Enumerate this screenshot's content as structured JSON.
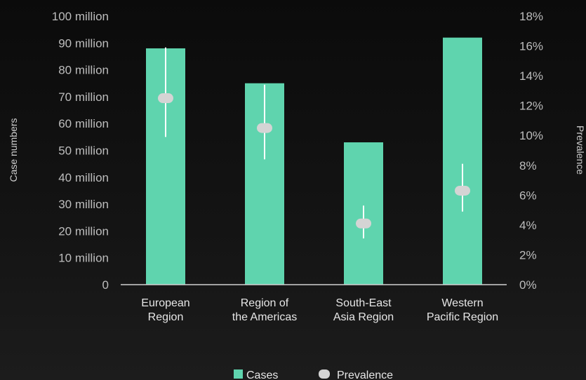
{
  "chart_data": {
    "type": "bar",
    "categories": [
      [
        "European",
        "Region"
      ],
      [
        "Region of",
        "the Americas"
      ],
      [
        "South-East",
        "Asia Region"
      ],
      [
        "Western",
        "Pacific Region"
      ]
    ],
    "series": [
      {
        "name": "Cases",
        "type": "bar",
        "axis": "left",
        "values": [
          88,
          75,
          53,
          92
        ]
      },
      {
        "name": "Prevalence",
        "type": "point",
        "axis": "right",
        "values": [
          12.5,
          10.5,
          4.1,
          6.3
        ],
        "error_low": [
          9.9,
          8.4,
          3.1,
          4.9
        ],
        "error_high": [
          15.9,
          13.4,
          5.3,
          8.1
        ]
      }
    ],
    "ylabel": "Case numbers",
    "y2label": "Prevalence",
    "ylim": [
      0,
      100
    ],
    "y2lim": [
      0,
      18
    ],
    "yticks": [
      "0",
      "10 million",
      "20 million",
      "30 million",
      "40 million",
      "50 million",
      "60 million",
      "70 million",
      "80 million",
      "90 million",
      "100 million"
    ],
    "y2ticks": [
      "0%",
      "2%",
      "4%",
      "6%",
      "8%",
      "10%",
      "12%",
      "14%",
      "16%",
      "18%"
    ],
    "grid": false,
    "legend_position": "bottom-center",
    "colors": {
      "bar": "#5fd4ae",
      "point": "#d4d4d4",
      "errorbar": "#ffffff",
      "axis": "#d0d0d0"
    }
  }
}
